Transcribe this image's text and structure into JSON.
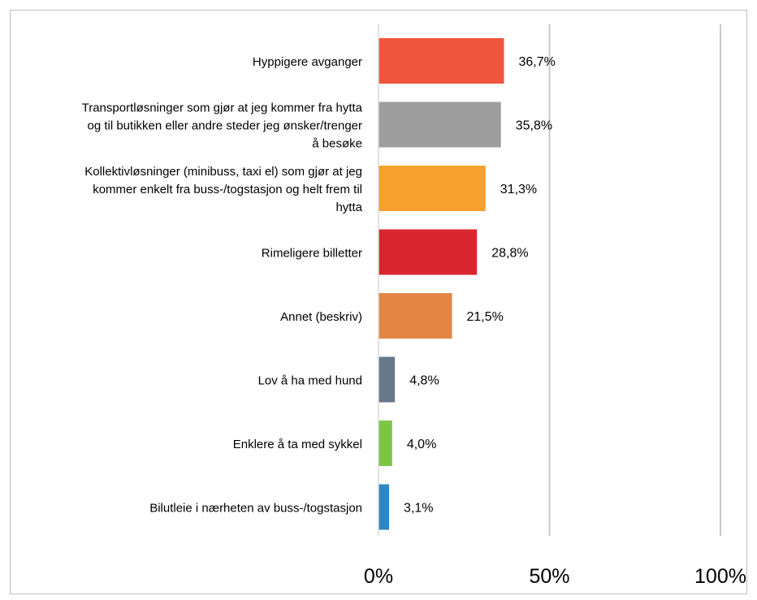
{
  "chart_data": {
    "type": "bar",
    "orientation": "horizontal",
    "categories": [
      "Hyppigere avganger",
      "Transportløsninger som gjør at jeg kommer fra hytta\nog til butikken eller andre steder jeg ønsker/trenger\nå besøke",
      "Kollektivløsninger (minibuss, taxi el) som gjør at jeg\nkommer enkelt fra buss-/togstasjon og helt frem til\nhytta",
      "Rimeligere billetter",
      "Annet (beskriv)",
      "Lov å ha med hund",
      "Enklere å ta med sykkel",
      "Bilutleie i nærheten av buss-/togstasjon"
    ],
    "values": [
      36.7,
      35.8,
      31.3,
      28.8,
      21.5,
      4.8,
      4.0,
      3.1
    ],
    "value_labels": [
      "36,7%",
      "35,8%",
      "31,3%",
      "28,8%",
      "21,5%",
      "4,8%",
      "4,0%",
      "3,1%"
    ],
    "colors": [
      "#ef553b",
      "#9e9e9e",
      "#f7a02e",
      "#d9262e",
      "#e38543",
      "#66788a",
      "#7cc644",
      "#2f86c3"
    ],
    "xlim": [
      0,
      100
    ],
    "xticks": [
      0,
      50,
      100
    ],
    "xtick_labels": [
      "0%",
      "50%",
      "100%"
    ],
    "grid": true,
    "legend": "none",
    "title": "",
    "xlabel": "",
    "ylabel": ""
  }
}
